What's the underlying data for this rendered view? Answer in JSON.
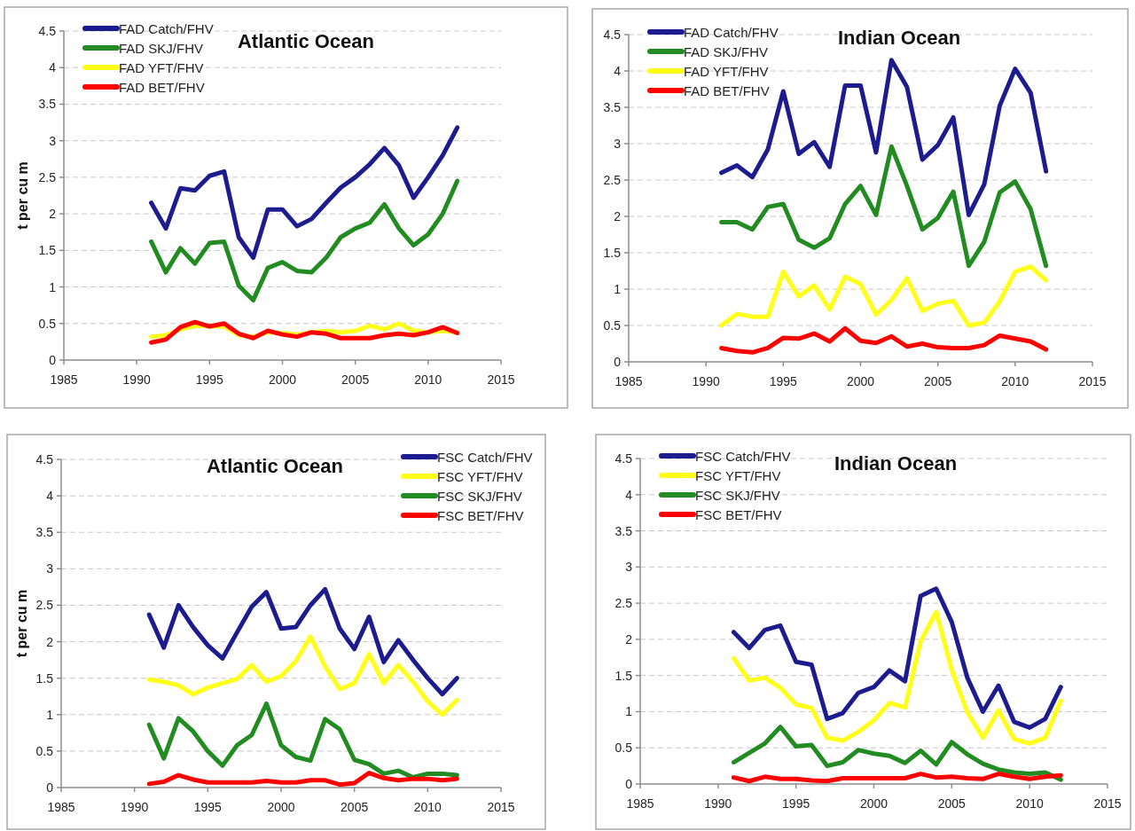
{
  "chart_data": [
    {
      "type": "line",
      "title": "Atlantic Ocean",
      "ylabel": "t per cu m",
      "x": [
        1991,
        1992,
        1993,
        1994,
        1995,
        1996,
        1997,
        1998,
        1999,
        2000,
        2001,
        2002,
        2003,
        2004,
        2005,
        2006,
        2007,
        2008,
        2009,
        2010,
        2011,
        2012
      ],
      "xlim": [
        1985,
        2015
      ],
      "xticks": [
        1985,
        1990,
        1995,
        2000,
        2005,
        2010,
        2015
      ],
      "ylim": [
        0,
        4.5
      ],
      "yticks": [
        0,
        0.5,
        1,
        1.5,
        2,
        2.5,
        3,
        3.5,
        4,
        4.5
      ],
      "grid": "y",
      "legend": "top left",
      "series": [
        {
          "name": "FAD Catch/FHV",
          "color": "#1c1c8f",
          "values": [
            2.15,
            1.8,
            2.35,
            2.32,
            2.52,
            2.58,
            1.68,
            1.4,
            2.06,
            2.06,
            1.83,
            1.93,
            2.15,
            2.36,
            2.5,
            2.68,
            2.9,
            2.66,
            2.22,
            2.5,
            2.8,
            3.18
          ]
        },
        {
          "name": "FAD SKJ/FHV",
          "color": "#228b22",
          "values": [
            1.62,
            1.2,
            1.53,
            1.32,
            1.6,
            1.62,
            1.02,
            0.82,
            1.26,
            1.34,
            1.22,
            1.2,
            1.4,
            1.68,
            1.8,
            1.88,
            2.13,
            1.8,
            1.57,
            1.72,
            2.0,
            2.45
          ]
        },
        {
          "name": "FAD YFT/FHV",
          "color": "#ffff1a",
          "values": [
            0.32,
            0.34,
            0.42,
            0.47,
            0.46,
            0.46,
            0.34,
            0.32,
            0.38,
            0.37,
            0.35,
            0.38,
            0.4,
            0.38,
            0.4,
            0.47,
            0.42,
            0.5,
            0.4,
            0.38,
            0.4,
            0.38
          ]
        },
        {
          "name": "FAD BET/FHV",
          "color": "#ff0000",
          "values": [
            0.24,
            0.28,
            0.45,
            0.52,
            0.46,
            0.5,
            0.36,
            0.3,
            0.4,
            0.35,
            0.32,
            0.38,
            0.36,
            0.3,
            0.3,
            0.3,
            0.34,
            0.36,
            0.34,
            0.38,
            0.45,
            0.37
          ]
        }
      ]
    },
    {
      "type": "line",
      "title": "Indian Ocean",
      "x": [
        1991,
        1992,
        1993,
        1994,
        1995,
        1996,
        1997,
        1998,
        1999,
        2000,
        2001,
        2002,
        2003,
        2004,
        2005,
        2006,
        2007,
        2008,
        2009,
        2010,
        2011,
        2012
      ],
      "xlim": [
        1985,
        2015
      ],
      "xticks": [
        1985,
        1990,
        1995,
        2000,
        2005,
        2010,
        2015
      ],
      "ylim": [
        0,
        4.5
      ],
      "yticks": [
        0,
        0.5,
        1,
        1.5,
        2,
        2.5,
        3,
        3.5,
        4,
        4.5
      ],
      "grid": "y",
      "legend": "top left",
      "series": [
        {
          "name": "FAD Catch/FHV",
          "color": "#1c1c8f",
          "values": [
            2.6,
            2.7,
            2.54,
            2.92,
            3.72,
            2.86,
            3.02,
            2.68,
            3.8,
            3.8,
            2.88,
            4.15,
            3.78,
            2.78,
            2.98,
            3.36,
            2.02,
            2.44,
            3.52,
            4.03,
            3.7,
            2.62
          ]
        },
        {
          "name": "FAD SKJ/FHV",
          "color": "#228b22",
          "values": [
            1.92,
            1.92,
            1.82,
            2.13,
            2.17,
            1.68,
            1.57,
            1.7,
            2.17,
            2.42,
            2.02,
            2.96,
            2.42,
            1.82,
            1.98,
            2.34,
            1.32,
            1.65,
            2.33,
            2.48,
            2.1,
            1.32
          ]
        },
        {
          "name": "FAD YFT/FHV",
          "color": "#ffff1a",
          "values": [
            0.5,
            0.66,
            0.62,
            0.62,
            1.24,
            0.9,
            1.05,
            0.72,
            1.17,
            1.07,
            0.65,
            0.85,
            1.15,
            0.7,
            0.8,
            0.84,
            0.5,
            0.54,
            0.83,
            1.24,
            1.31,
            1.12
          ]
        },
        {
          "name": "FAD BET/FHV",
          "color": "#ff0000",
          "values": [
            0.19,
            0.15,
            0.13,
            0.19,
            0.33,
            0.32,
            0.39,
            0.28,
            0.46,
            0.29,
            0.26,
            0.35,
            0.21,
            0.25,
            0.2,
            0.19,
            0.19,
            0.23,
            0.36,
            0.32,
            0.28,
            0.17
          ]
        }
      ]
    },
    {
      "type": "line",
      "title": "Atlantic Ocean",
      "ylabel": "t per cu m",
      "x": [
        1991,
        1992,
        1993,
        1994,
        1995,
        1996,
        1997,
        1998,
        1999,
        2000,
        2001,
        2002,
        2003,
        2004,
        2005,
        2006,
        2007,
        2008,
        2009,
        2010,
        2011,
        2012
      ],
      "xlim": [
        1985,
        2015
      ],
      "xticks": [
        1985,
        1990,
        1995,
        2000,
        2005,
        2010,
        2015
      ],
      "ylim": [
        0,
        4.5
      ],
      "yticks": [
        0,
        0.5,
        1,
        1.5,
        2,
        2.5,
        3,
        3.5,
        4,
        4.5
      ],
      "grid": "y",
      "legend": "top right",
      "series": [
        {
          "name": "FSC Catch/FHV",
          "color": "#1c1c8f",
          "values": [
            2.37,
            1.92,
            2.5,
            2.2,
            1.95,
            1.77,
            2.13,
            2.48,
            2.68,
            2.18,
            2.2,
            2.5,
            2.72,
            2.18,
            1.9,
            2.34,
            1.72,
            2.02,
            1.75,
            1.5,
            1.28,
            1.5
          ]
        },
        {
          "name": "FSC YFT/FHV",
          "color": "#ffff1a",
          "values": [
            1.48,
            1.45,
            1.4,
            1.28,
            1.37,
            1.43,
            1.49,
            1.68,
            1.45,
            1.53,
            1.73,
            2.07,
            1.66,
            1.35,
            1.43,
            1.83,
            1.43,
            1.68,
            1.45,
            1.18,
            1.0,
            1.2
          ]
        },
        {
          "name": "FSC SKJ/FHV",
          "color": "#228b22",
          "values": [
            0.86,
            0.4,
            0.95,
            0.77,
            0.5,
            0.3,
            0.58,
            0.72,
            1.15,
            0.58,
            0.42,
            0.37,
            0.94,
            0.8,
            0.38,
            0.32,
            0.19,
            0.23,
            0.14,
            0.19,
            0.19,
            0.17
          ]
        },
        {
          "name": "FSC BET/FHV",
          "color": "#ff0000",
          "values": [
            0.05,
            0.08,
            0.17,
            0.11,
            0.07,
            0.07,
            0.07,
            0.07,
            0.09,
            0.07,
            0.07,
            0.1,
            0.1,
            0.04,
            0.06,
            0.2,
            0.13,
            0.1,
            0.12,
            0.12,
            0.1,
            0.12
          ]
        }
      ]
    },
    {
      "type": "line",
      "title": "Indian Ocean",
      "x": [
        1991,
        1992,
        1993,
        1994,
        1995,
        1996,
        1997,
        1998,
        1999,
        2000,
        2001,
        2002,
        2003,
        2004,
        2005,
        2006,
        2007,
        2008,
        2009,
        2010,
        2011,
        2012
      ],
      "xlim": [
        1985,
        2015
      ],
      "xticks": [
        1985,
        1990,
        1995,
        2000,
        2005,
        2010,
        2015
      ],
      "ylim": [
        0,
        4.5
      ],
      "yticks": [
        0,
        0.5,
        1,
        1.5,
        2,
        2.5,
        3,
        3.5,
        4,
        4.5
      ],
      "grid": "y",
      "legend": "top left",
      "series": [
        {
          "name": "FSC Catch/FHV",
          "color": "#1c1c8f",
          "values": [
            2.1,
            1.88,
            2.13,
            2.19,
            1.69,
            1.65,
            0.9,
            0.98,
            1.26,
            1.34,
            1.57,
            1.42,
            2.6,
            2.7,
            2.24,
            1.47,
            1.0,
            1.36,
            0.86,
            0.78,
            0.9,
            1.34
          ]
        },
        {
          "name": "FSC YFT/FHV",
          "color": "#ffff1a",
          "values": [
            1.74,
            1.43,
            1.47,
            1.33,
            1.1,
            1.05,
            0.64,
            0.6,
            0.72,
            0.88,
            1.12,
            1.06,
            1.97,
            2.38,
            1.58,
            0.99,
            0.64,
            1.02,
            0.62,
            0.56,
            0.64,
            1.15
          ]
        },
        {
          "name": "FSC SKJ/FHV",
          "color": "#228b22",
          "values": [
            0.3,
            0.43,
            0.56,
            0.79,
            0.52,
            0.54,
            0.25,
            0.3,
            0.47,
            0.42,
            0.39,
            0.29,
            0.46,
            0.27,
            0.58,
            0.41,
            0.28,
            0.2,
            0.16,
            0.14,
            0.16,
            0.06
          ]
        },
        {
          "name": "FSC BET/FHV",
          "color": "#ff0000",
          "values": [
            0.09,
            0.04,
            0.1,
            0.07,
            0.07,
            0.05,
            0.04,
            0.08,
            0.08,
            0.08,
            0.08,
            0.08,
            0.14,
            0.09,
            0.1,
            0.08,
            0.07,
            0.14,
            0.1,
            0.07,
            0.1,
            0.12
          ]
        }
      ]
    }
  ]
}
